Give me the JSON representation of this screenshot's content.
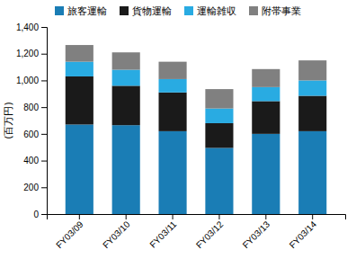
{
  "chart_data": {
    "type": "bar",
    "stacked": true,
    "categories": [
      "FY03/09",
      "FY03/10",
      "FY03/11",
      "FY03/12",
      "FY03/13",
      "FY03/14"
    ],
    "series": [
      {
        "name": "旅客運輸",
        "color": "#1a7db5",
        "values": [
          670,
          665,
          620,
          495,
          600,
          620
        ]
      },
      {
        "name": "貨物運輸",
        "color": "#1a1a1a",
        "values": [
          360,
          295,
          290,
          185,
          245,
          265
        ]
      },
      {
        "name": "運輸雑収",
        "color": "#29abe2",
        "values": [
          110,
          120,
          100,
          110,
          105,
          115
        ]
      },
      {
        "name": "附帯事業",
        "color": "#808080",
        "values": [
          125,
          130,
          130,
          145,
          135,
          150
        ]
      }
    ],
    "ylabel": "(百万円)",
    "ylim": [
      0,
      1400
    ],
    "yticks": [
      0,
      200,
      400,
      600,
      800,
      {
        "value": 1000,
        "label": "1,000"
      },
      {
        "value": 1200,
        "label": "1,200"
      },
      {
        "value": 1400,
        "label": "1,400"
      }
    ],
    "legend": "top",
    "grid": false
  }
}
